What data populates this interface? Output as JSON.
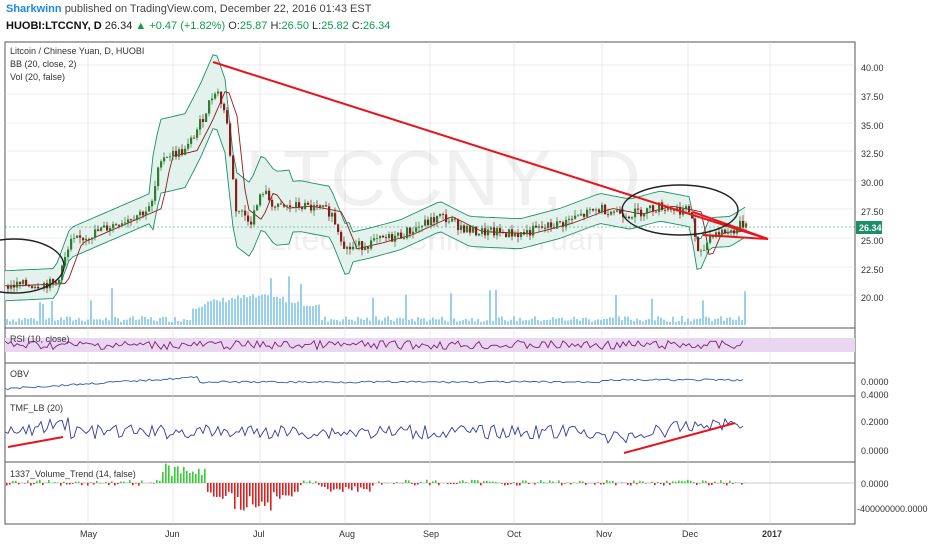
{
  "header": {
    "author": "Sharkwinn",
    "published_text": "published on TradingView.com, December 22, 2016 01:43 EST",
    "symbol": "HUOBI:LTCCNY, D",
    "last": "26.34",
    "change": "▲ +0.47 (+1.82%)",
    "o_label": "O:",
    "o_value": "25.87",
    "h_label": "H:",
    "h_value": "26.50",
    "l_label": "L:",
    "l_value": "25.82",
    "c_label": "C:",
    "c_value": "26.34"
  },
  "legend": {
    "main": "Litcoin / Chinese Yuan, D, HUOBI",
    "bb": "BB (20, close, 2)",
    "vol": "Vol (20, false)",
    "rsi": "RSI (10, close)",
    "obv": "OBV",
    "tmf": "TMF_LB (20)",
    "vt": "1337_Volume_Trend (14, false)"
  },
  "watermark": {
    "big": "LTCCNY, D",
    "small": "Litecoin / Chinese Yuan"
  },
  "price_axis": {
    "ticks": [
      "40.00",
      "37.50",
      "35.00",
      "32.50",
      "30.00",
      "27.50",
      "25.00",
      "22.50",
      "20.00"
    ],
    "last_price_label": "26.34"
  },
  "obv_axis": {
    "ticks": [
      "0.0000"
    ]
  },
  "tmf_axis": {
    "ticks": [
      "0.4000",
      "0.2000",
      "0.0000"
    ]
  },
  "vt_axis": {
    "ticks": [
      "0.0000",
      "-400000000.0000"
    ]
  },
  "time_axis": {
    "ticks": [
      "May",
      "Jun",
      "Jul",
      "Aug",
      "Sep",
      "Oct",
      "Nov",
      "Dec",
      "2017"
    ]
  },
  "colors": {
    "bb_fill": "#e3f2ec",
    "bb_line": "#1a8f6a",
    "ma_line": "#8b1c1c",
    "trendline": "#e8141c",
    "volume": "#7ec4e8",
    "rsi_band": "#ead6f0",
    "rsi_line": "#7a1f7a",
    "obv_line": "#2a5db0",
    "tmf_line": "#2f3aa0",
    "vt_up": "#33cc33",
    "vt_down": "#e02020",
    "candle_up": "#2e7d32",
    "candle_down": "#8b1c1c",
    "grid": "#d9d9d9",
    "ellipse": "#222222"
  }
}
